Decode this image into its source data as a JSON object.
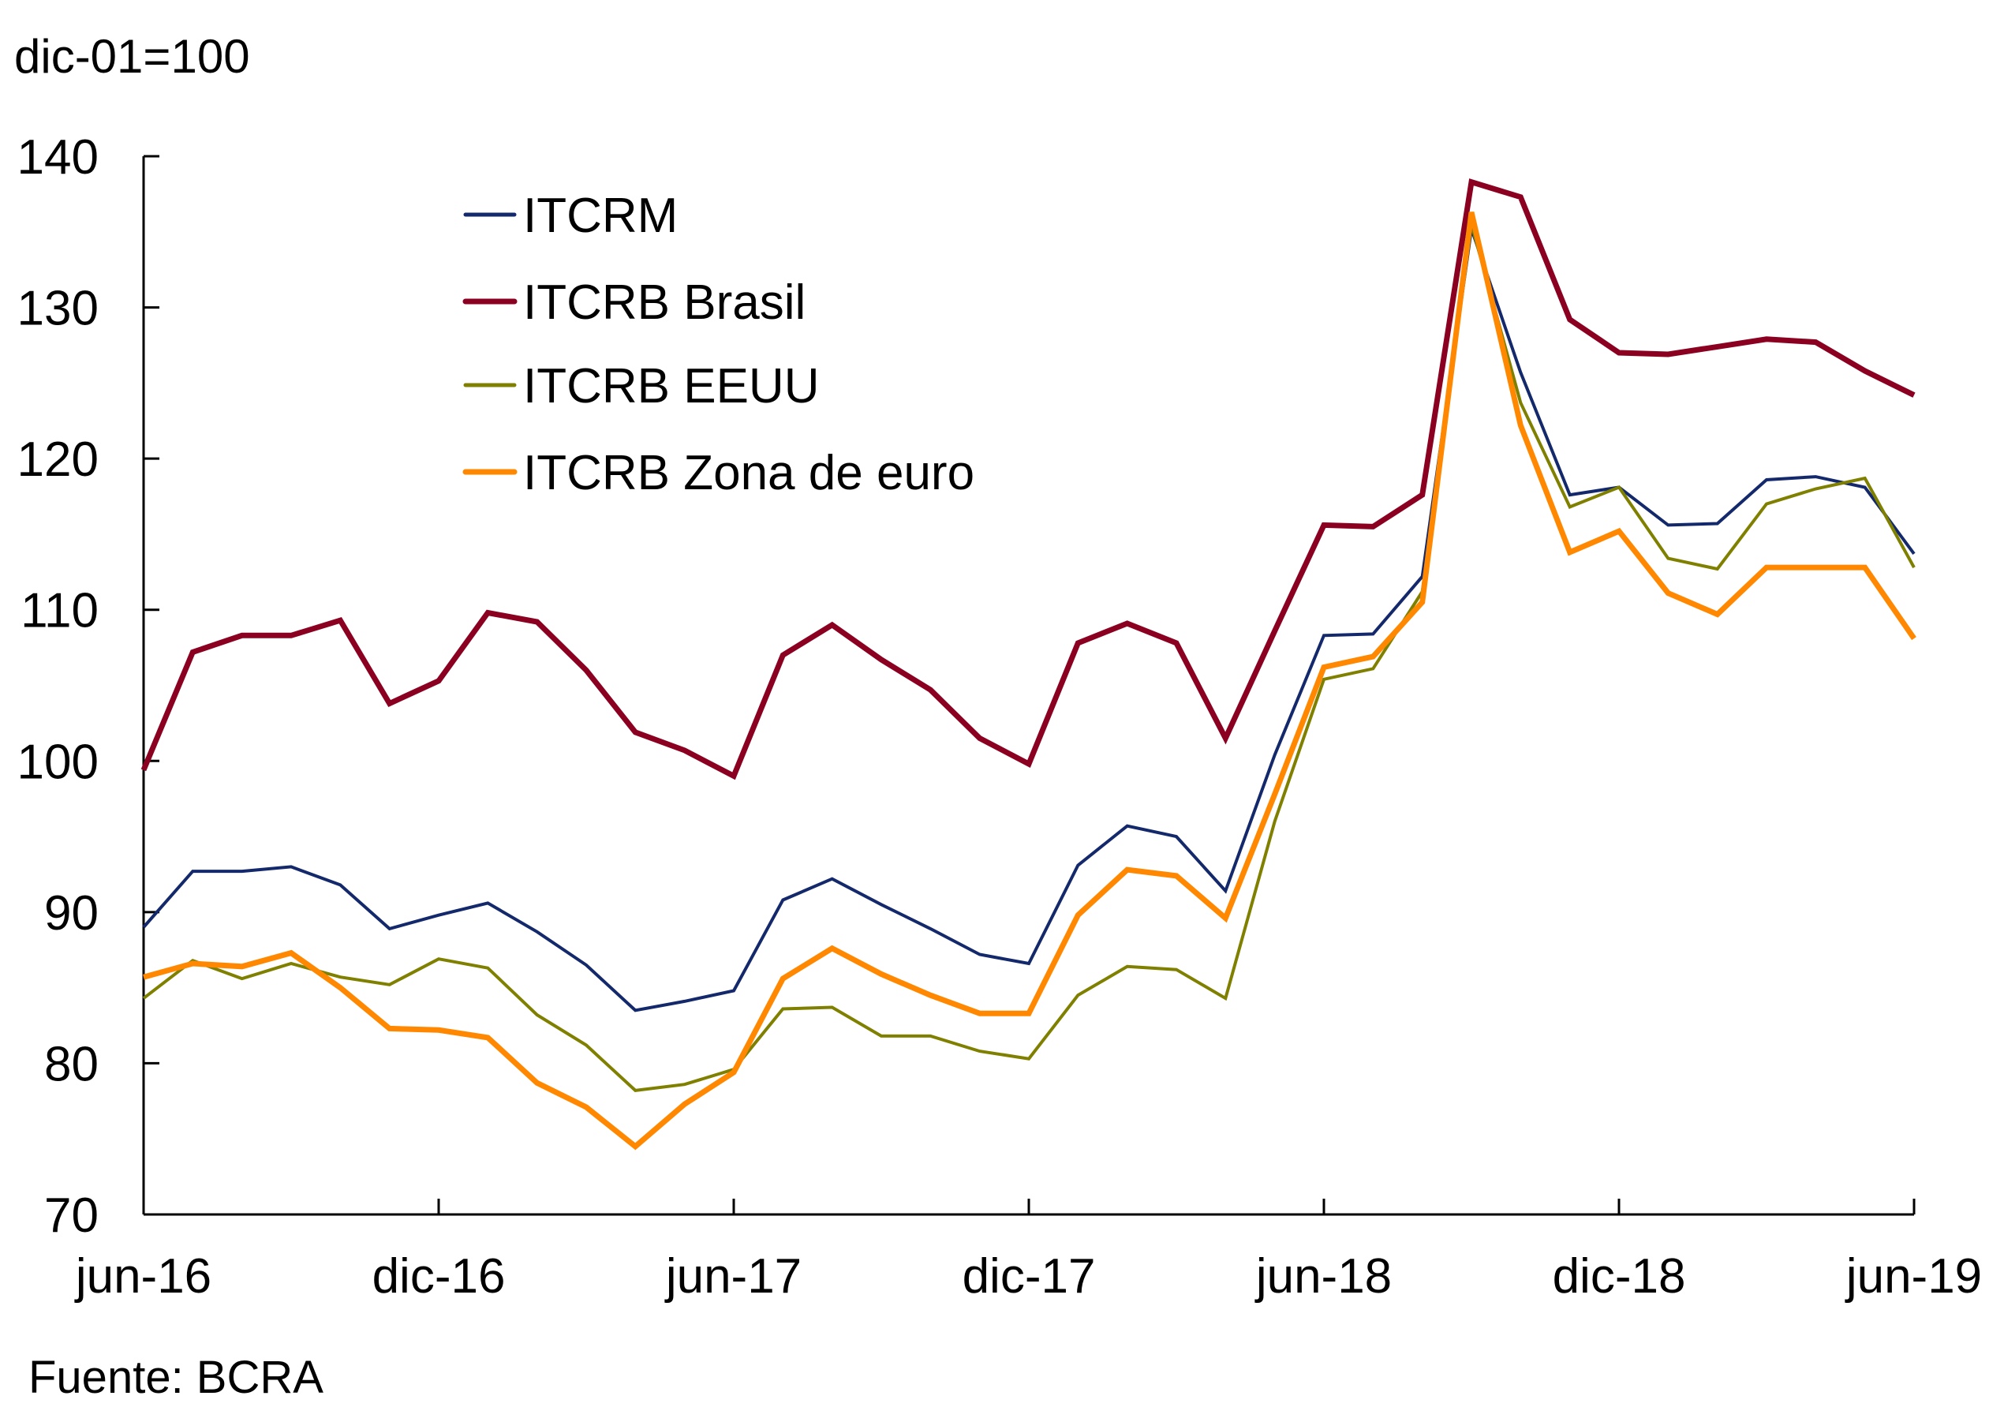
{
  "chart_data": {
    "type": "line",
    "title": "",
    "unit_label": "dic-01=100",
    "source": "Fuente: BCRA",
    "xlabel": "",
    "ylabel": "",
    "ylim": [
      70,
      140
    ],
    "yticks": [
      70,
      80,
      90,
      100,
      110,
      120,
      130,
      140
    ],
    "ytick_labels": [
      "70",
      "80",
      "90",
      "100",
      "110",
      "120",
      "130",
      "140"
    ],
    "x": [
      "jun-16",
      "jul-16",
      "ago-16",
      "sep-16",
      "oct-16",
      "nov-16",
      "dic-16",
      "ene-17",
      "feb-17",
      "mar-17",
      "abr-17",
      "may-17",
      "jun-17",
      "jul-17",
      "ago-17",
      "sep-17",
      "oct-17",
      "nov-17",
      "dic-17",
      "ene-18",
      "feb-18",
      "mar-18",
      "abr-18",
      "may-18",
      "jun-18",
      "jul-18",
      "ago-18",
      "sep-18",
      "oct-18",
      "nov-18",
      "dic-18",
      "ene-19",
      "feb-19",
      "mar-19",
      "abr-19",
      "may-19",
      "jun-19"
    ],
    "xticks": [
      {
        "index": 0,
        "label": "jun-16"
      },
      {
        "index": 6,
        "label": "dic-16"
      },
      {
        "index": 12,
        "label": "jun-17"
      },
      {
        "index": 18,
        "label": "dic-17"
      },
      {
        "index": 24,
        "label": "jun-18"
      },
      {
        "index": 30,
        "label": "dic-18"
      },
      {
        "index": 36,
        "label": "jun-19"
      }
    ],
    "grid": false,
    "legend_position": "top-left-inside",
    "series": [
      {
        "name": "ITCRM",
        "color": "#13296b",
        "weight": "thin",
        "values": [
          89.0,
          92.7,
          92.7,
          93.0,
          91.8,
          88.9,
          89.8,
          90.6,
          88.7,
          86.5,
          83.5,
          84.1,
          84.8,
          90.8,
          92.2,
          90.5,
          88.9,
          87.2,
          86.6,
          93.1,
          95.7,
          95.0,
          91.4,
          100.4,
          108.3,
          108.4,
          112.2,
          135.2,
          125.7,
          117.6,
          118.1,
          115.6,
          115.7,
          118.6,
          118.8,
          118.1,
          113.7
        ]
      },
      {
        "name": "ITCRB Brasil",
        "color": "#8b0020",
        "weight": "thick",
        "values": [
          99.4,
          107.2,
          108.3,
          108.3,
          109.3,
          103.8,
          105.3,
          109.8,
          109.2,
          106.0,
          101.9,
          100.7,
          99.0,
          107.0,
          109.0,
          106.7,
          104.7,
          101.5,
          99.8,
          107.8,
          109.1,
          107.8,
          101.5,
          108.6,
          115.6,
          115.5,
          117.6,
          138.3,
          137.3,
          129.2,
          127.0,
          126.9,
          127.4,
          127.9,
          127.7,
          125.8,
          124.2
        ]
      },
      {
        "name": "ITCRB EEUU",
        "color": "#7f8000",
        "weight": "thin",
        "values": [
          84.3,
          86.8,
          85.6,
          86.6,
          85.7,
          85.2,
          86.9,
          86.3,
          83.2,
          81.2,
          78.2,
          78.6,
          79.6,
          83.6,
          83.7,
          81.8,
          81.8,
          80.8,
          80.3,
          84.5,
          86.4,
          86.2,
          84.3,
          96.0,
          105.4,
          106.1,
          111.2,
          135.5,
          123.7,
          116.8,
          118.1,
          113.4,
          112.7,
          117.0,
          118.0,
          118.7,
          112.8
        ]
      },
      {
        "name": "ITCRB Zona de euro",
        "color": "#ff8800",
        "weight": "thick",
        "values": [
          85.7,
          86.6,
          86.4,
          87.3,
          85.0,
          82.3,
          82.2,
          81.7,
          78.7,
          77.1,
          74.5,
          77.3,
          79.4,
          85.6,
          87.6,
          85.9,
          84.5,
          83.3,
          83.3,
          89.8,
          92.8,
          92.4,
          89.6,
          97.8,
          106.2,
          106.9,
          110.5,
          136.3,
          122.2,
          113.8,
          115.2,
          111.1,
          109.7,
          112.8,
          112.8,
          112.8,
          108.1
        ]
      }
    ]
  }
}
